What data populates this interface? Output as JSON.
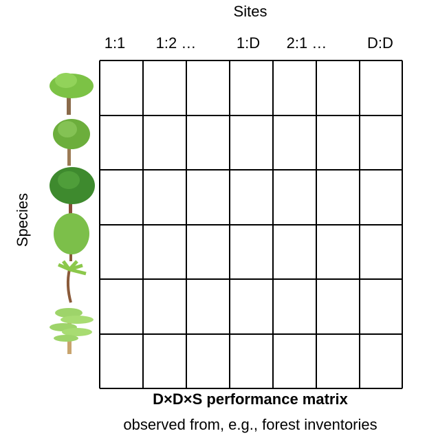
{
  "header": {
    "title": "Sites",
    "columns": [
      "1:1",
      "1:2 …",
      "1:D",
      "2:1 …",
      "D:D"
    ]
  },
  "axis": {
    "label": "Species"
  },
  "caption": {
    "title": "D×D×S performance matrix",
    "subtitle": "observed from, e.g., forest inventories"
  }
}
